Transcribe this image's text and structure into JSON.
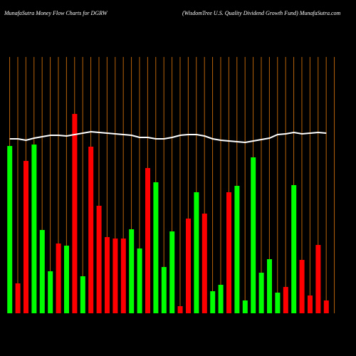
{
  "chart_data": {
    "type": "bar",
    "title": "MunafaSutra  Money Flow  Charts for DGRW",
    "subtitle": "(WisdomTree   U.S. Quality Dividend Growth Fund) MunafaSutra.com",
    "categories": [
      null,
      null,
      null,
      null,
      null,
      null,
      null,
      null,
      null,
      null,
      null,
      null,
      null,
      null,
      null,
      null,
      null,
      null,
      null,
      null,
      null,
      null,
      null,
      null,
      null,
      null,
      null,
      null,
      null,
      null,
      null,
      null,
      null,
      null,
      null,
      null,
      null,
      null,
      null,
      null
    ],
    "values": [
      235,
      42,
      214,
      237,
      117,
      59,
      98,
      95,
      280,
      52,
      234,
      151,
      107,
      105,
      105,
      118,
      91,
      204,
      184,
      65,
      115,
      10,
      133,
      170,
      140,
      31,
      40,
      170,
      179,
      18,
      219,
      57,
      76,
      29,
      37,
      180,
      75,
      25,
      96,
      18
    ],
    "colors": [
      "#00ff00",
      "#ff0000",
      "#ff0000",
      "#00ff00",
      "#00ff00",
      "#00ff00",
      "#ff0000",
      "#00ff00",
      "#ff0000",
      "#00ff00",
      "#ff0000",
      "#ff0000",
      "#ff0000",
      "#ff0000",
      "#ff0000",
      "#00ff00",
      "#00ff00",
      "#ff0000",
      "#00ff00",
      "#00ff00",
      "#00ff00",
      "#ff0000",
      "#ff0000",
      "#00ff00",
      "#ff0000",
      "#00ff00",
      "#00ff00",
      "#ff0000",
      "#00ff00",
      "#00ff00",
      "#00ff00",
      "#00ff00",
      "#00ff00",
      "#00ff00",
      "#ff0000",
      "#00ff00",
      "#ff0000",
      "#ff0000",
      "#ff0000",
      "#ff0000"
    ],
    "line": {
      "color": "#ffffff",
      "values": [
        245,
        245,
        243,
        246,
        248,
        250,
        250,
        249,
        251,
        253,
        255,
        254,
        253,
        252,
        251,
        250,
        247,
        247,
        245,
        245,
        247,
        250,
        251,
        251,
        249,
        245,
        243,
        242,
        241,
        240,
        242,
        244,
        246,
        251,
        252,
        254,
        252,
        253,
        254,
        253
      ]
    },
    "ylim": [
      0,
      280
    ],
    "grid_color": "#b8620a"
  }
}
